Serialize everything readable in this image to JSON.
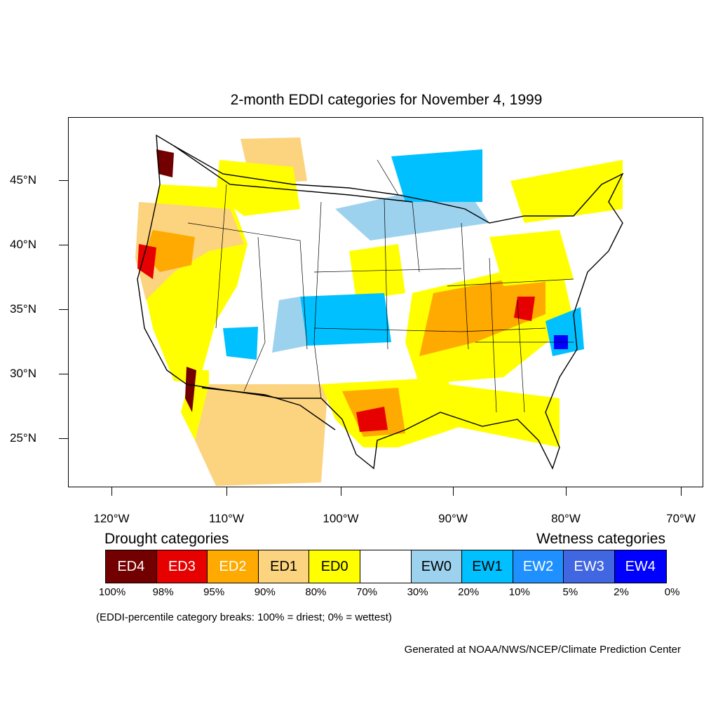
{
  "map": {
    "title": "2-month EDDI categories for November 4, 1999",
    "lat_labels": [
      "45°N",
      "40°N",
      "35°N",
      "30°N",
      "25°N"
    ],
    "lon_labels": [
      "120°W",
      "110°W",
      "100°W",
      "90°W",
      "80°W",
      "70°W"
    ]
  },
  "legend": {
    "drought_heading": "Drought categories",
    "wetness_heading": "Wetness categories",
    "categories": [
      {
        "label": "ED4",
        "color": "#730000",
        "text_color": "#ffffff"
      },
      {
        "label": "ED3",
        "color": "#e60000",
        "text_color": "#ffffff"
      },
      {
        "label": "ED2",
        "color": "#ffaa00",
        "text_color": "#ffffff"
      },
      {
        "label": "ED1",
        "color": "#fcd37f",
        "text_color": "#000000"
      },
      {
        "label": "ED0",
        "color": "#ffff00",
        "text_color": "#000000"
      },
      {
        "label": "",
        "color": "#ffffff",
        "text_color": "#000000"
      },
      {
        "label": "EW0",
        "color": "#9dd2ef",
        "text_color": "#000000"
      },
      {
        "label": "EW1",
        "color": "#00c0ff",
        "text_color": "#000000"
      },
      {
        "label": "EW2",
        "color": "#1e90ff",
        "text_color": "#ffffff"
      },
      {
        "label": "EW3",
        "color": "#4166e1",
        "text_color": "#ffffff"
      },
      {
        "label": "EW4",
        "color": "#0000ff",
        "text_color": "#ffffff"
      }
    ],
    "breaks": [
      "100%",
      "98%",
      "95%",
      "90%",
      "80%",
      "70%",
      "30%",
      "20%",
      "10%",
      "5%",
      "2%",
      "0%"
    ],
    "note": "(EDDI-percentile category breaks: 100% = driest; 0% = wettest)"
  },
  "credit": "Generated at NOAA/NWS/NCEP/Climate Prediction Center"
}
